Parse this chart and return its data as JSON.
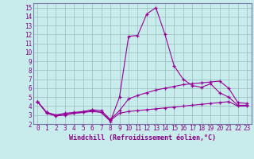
{
  "xlabel": "Windchill (Refroidissement éolien,°C)",
  "bg_color": "#c8ecec",
  "line_color": "#990099",
  "grid_color": "#99bbbb",
  "spine_color": "#7777aa",
  "xlim": [
    -0.5,
    23.5
  ],
  "ylim": [
    2,
    15.5
  ],
  "xticks": [
    0,
    1,
    2,
    3,
    4,
    5,
    6,
    7,
    8,
    9,
    10,
    11,
    12,
    13,
    14,
    15,
    16,
    17,
    18,
    19,
    20,
    21,
    22,
    23
  ],
  "yticks": [
    2,
    3,
    4,
    5,
    6,
    7,
    8,
    9,
    10,
    11,
    12,
    13,
    14,
    15
  ],
  "series": [
    [
      4.5,
      3.2,
      2.9,
      3.0,
      3.2,
      3.3,
      3.5,
      3.3,
      2.3,
      5.0,
      11.8,
      11.9,
      14.3,
      15.0,
      12.0,
      8.5,
      7.0,
      6.3,
      6.1,
      6.5,
      5.5,
      5.0,
      4.1,
      4.1
    ],
    [
      4.5,
      3.3,
      3.0,
      3.2,
      3.3,
      3.4,
      3.6,
      3.5,
      2.5,
      3.5,
      4.8,
      5.2,
      5.5,
      5.8,
      6.0,
      6.2,
      6.4,
      6.5,
      6.6,
      6.7,
      6.8,
      6.0,
      4.4,
      4.3
    ],
    [
      4.5,
      3.3,
      3.0,
      3.1,
      3.2,
      3.3,
      3.4,
      3.3,
      2.4,
      3.2,
      3.4,
      3.5,
      3.6,
      3.7,
      3.8,
      3.9,
      4.0,
      4.1,
      4.2,
      4.3,
      4.4,
      4.5,
      4.0,
      4.0
    ]
  ],
  "tick_fontsize": 5.5,
  "xlabel_fontsize": 6,
  "tick_color": "#880088"
}
